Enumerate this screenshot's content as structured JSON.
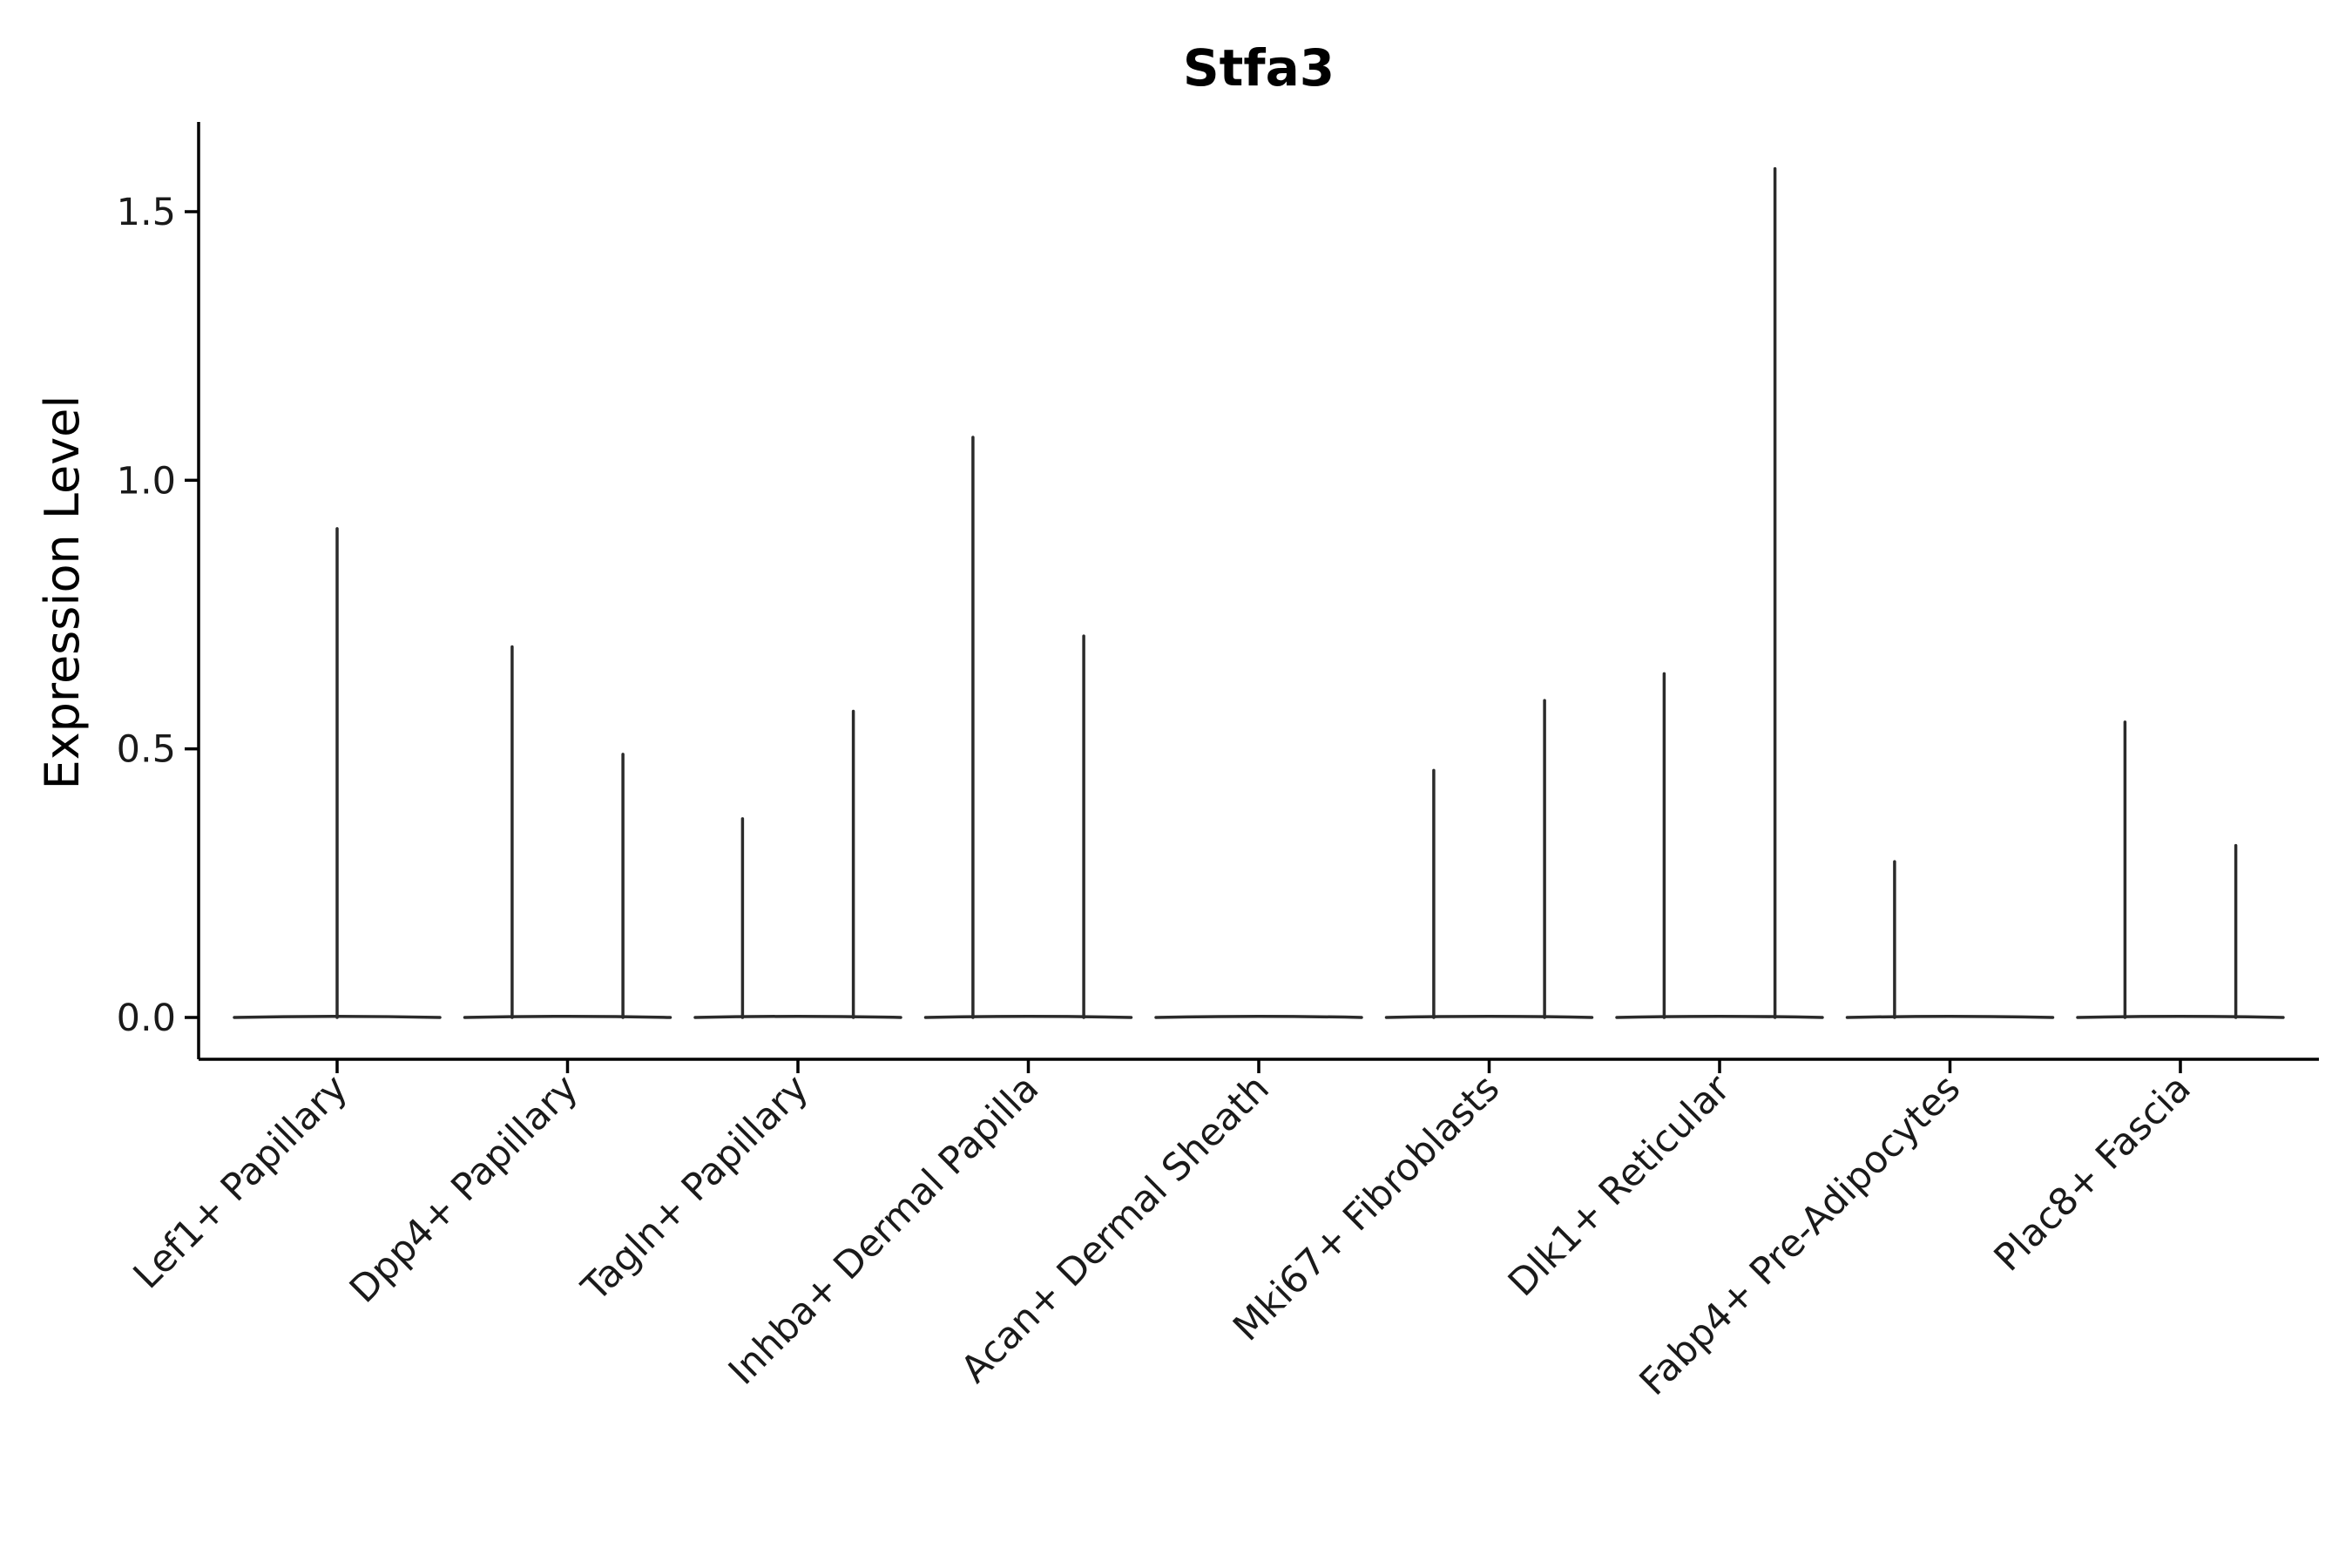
{
  "chart_data": {
    "type": "violin",
    "title": "Stfa3",
    "xlabel": "",
    "ylabel": "Expression Level",
    "ylim": [
      -0.08,
      1.66
    ],
    "yticks": [
      0.0,
      0.5,
      1.0,
      1.5
    ],
    "ytick_labels": [
      "0.0",
      "0.5",
      "1.0",
      "1.5"
    ],
    "categories": [
      "Lef1+ Papillary",
      "Dpp4+ Papillary",
      "Tagln+ Papillary",
      "Inhba+ Dermal Papilla",
      "Acan+ Dermal Sheath",
      "Mki67+ Fibroblasts",
      "Dlk1+ Reticular",
      "Fabp4+ Pre-Adipocytes",
      "Plac8+ Fascia"
    ],
    "series": [
      {
        "name": "Lef1+ Papillary",
        "spikes": [
          {
            "offset": 0.0,
            "max": 0.91
          }
        ]
      },
      {
        "name": "Dpp4+ Papillary",
        "spikes": [
          {
            "offset": -0.22,
            "max": 0.69
          },
          {
            "offset": 0.22,
            "max": 0.49
          }
        ]
      },
      {
        "name": "Tagln+ Papillary",
        "spikes": [
          {
            "offset": -0.22,
            "max": 0.37
          },
          {
            "offset": 0.22,
            "max": 0.57
          }
        ]
      },
      {
        "name": "Inhba+ Dermal Papilla",
        "spikes": [
          {
            "offset": -0.22,
            "max": 1.08
          },
          {
            "offset": 0.22,
            "max": 0.71
          }
        ]
      },
      {
        "name": "Acan+ Dermal Sheath",
        "spikes": []
      },
      {
        "name": "Mki67+ Fibroblasts",
        "spikes": [
          {
            "offset": -0.22,
            "max": 0.46
          },
          {
            "offset": 0.22,
            "max": 0.59
          }
        ]
      },
      {
        "name": "Dlk1+ Reticular",
        "spikes": [
          {
            "offset": -0.22,
            "max": 0.64
          },
          {
            "offset": 0.22,
            "max": 1.58
          }
        ]
      },
      {
        "name": "Fabp4+ Pre-Adipocytes",
        "spikes": [
          {
            "offset": -0.22,
            "max": 0.29
          }
        ]
      },
      {
        "name": "Plac8+ Fascia",
        "spikes": [
          {
            "offset": -0.22,
            "max": 0.55
          },
          {
            "offset": 0.22,
            "max": 0.32
          }
        ]
      }
    ],
    "grid": false,
    "legend": "none"
  },
  "colors": {
    "stroke": "#2b2b2b",
    "axis": "#000000",
    "background": "#ffffff"
  }
}
